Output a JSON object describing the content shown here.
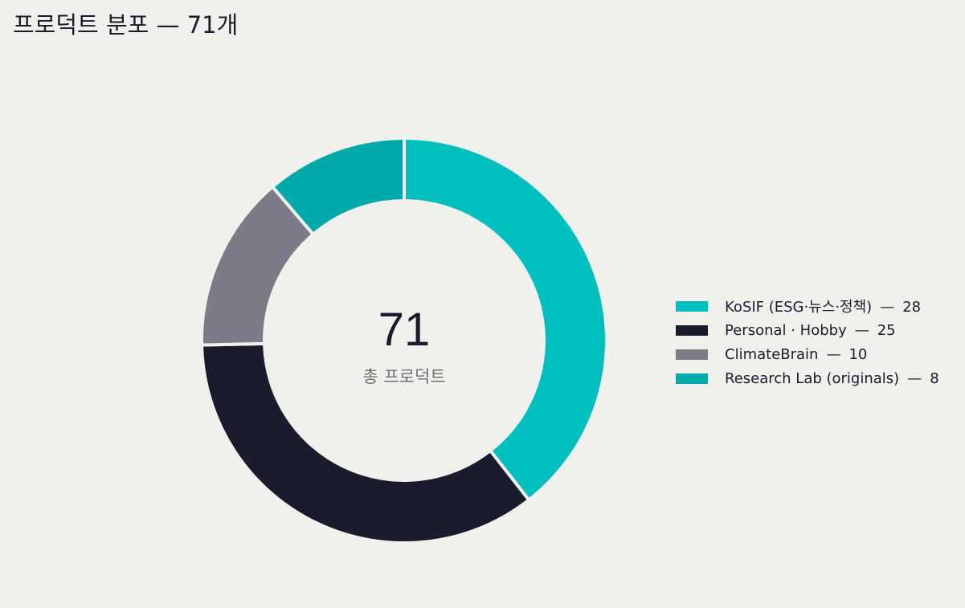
{
  "title": "프로덕트 분포 — 71개",
  "chart_data": {
    "type": "pie",
    "title": "프로덕트 분포 — 71개",
    "center_value": "71",
    "center_label": "총 프로덕트",
    "legend_position": "right",
    "legend_separator": "—",
    "slices": [
      {
        "label": "KoSIF (ESG·뉴스·정책)",
        "value": 28,
        "color": "#00bfbf"
      },
      {
        "label": "Personal · Hobby",
        "value": 25,
        "color": "#1b1b2e"
      },
      {
        "label": "ClimateBrain",
        "value": 10,
        "color": "#7c7b88"
      },
      {
        "label": "Research Lab (originals)",
        "value": 8,
        "color": "#00a9a9"
      }
    ]
  }
}
